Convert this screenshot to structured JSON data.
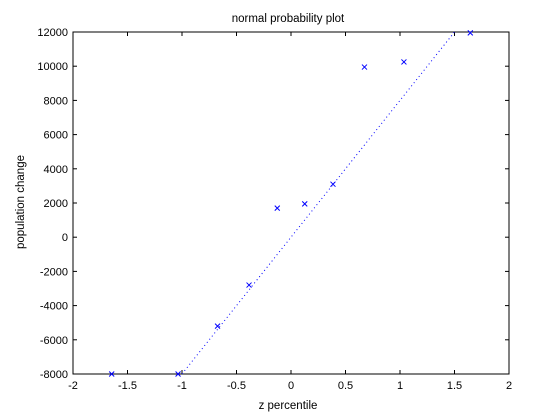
{
  "chart_data": {
    "type": "scatter",
    "title": "normal probability plot",
    "xlabel": "z percentile",
    "ylabel": "population change",
    "xlim": [
      -2,
      2
    ],
    "ylim": [
      -8000,
      12000
    ],
    "xticks": [
      -2,
      -1.5,
      -1,
      -0.5,
      0,
      0.5,
      1,
      1.5,
      2
    ],
    "xtick_labels": [
      "-2",
      "-1.5",
      "-1",
      "-0.5",
      "0",
      "0.5",
      "1",
      "1.5",
      "2"
    ],
    "yticks": [
      -8000,
      -6000,
      -4000,
      -2000,
      0,
      2000,
      4000,
      6000,
      8000,
      10000,
      12000
    ],
    "ytick_labels": [
      "-8000",
      "-6000",
      "-4000",
      "-2000",
      "0",
      "2000",
      "4000",
      "6000",
      "8000",
      "10000",
      "12000"
    ],
    "grid": false,
    "marker": "x",
    "marker_color": "#0000ff",
    "points": [
      {
        "x": -1.645,
        "y": -8000
      },
      {
        "x": -1.036,
        "y": -8000
      },
      {
        "x": -0.674,
        "y": -5200
      },
      {
        "x": -0.385,
        "y": -2800
      },
      {
        "x": -0.126,
        "y": 1700
      },
      {
        "x": 0.126,
        "y": 1950
      },
      {
        "x": 0.385,
        "y": 3100
      },
      {
        "x": 0.674,
        "y": 9950
      },
      {
        "x": 1.036,
        "y": 10250
      },
      {
        "x": 1.645,
        "y": 11950
      }
    ],
    "reference_line": {
      "style": "dotted",
      "color": "#0000ff",
      "x": [
        -1.0,
        1.5
      ],
      "y": [
        -8000,
        12000
      ]
    }
  }
}
